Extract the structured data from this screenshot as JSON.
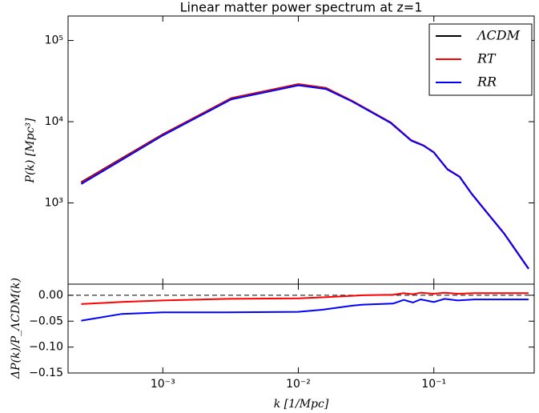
{
  "chart_data": [
    {
      "type": "line",
      "title": "Linear matter power spectrum at z=1",
      "y_label": "P(k)    [Mpc³]",
      "x_log": true,
      "y_log": true,
      "xlim": [
        0.0002,
        0.55
      ],
      "ylim": [
        100,
        200000
      ],
      "yticks": [
        {
          "value": 1000,
          "label": "10³"
        },
        {
          "value": 10000,
          "label": "10⁴"
        },
        {
          "value": 100000,
          "label": "10⁵"
        }
      ],
      "xticks": [
        0.001,
        0.01,
        0.1
      ],
      "legend": "upper right",
      "x": [
        0.00025,
        0.001,
        0.0032,
        0.01,
        0.016,
        0.025,
        0.037,
        0.048,
        0.068,
        0.084,
        0.1,
        0.126,
        0.155,
        0.19,
        0.25,
        0.33,
        0.5
      ],
      "series": [
        {
          "name": "ΛCDM",
          "color": "#000000",
          "values": [
            1800,
            7000,
            19500,
            29000,
            26000,
            18000,
            12500,
            9800,
            5900,
            5100,
            4200,
            2600,
            2100,
            1300,
            740,
            420,
            155
          ]
        },
        {
          "name": "RT",
          "color": "#ff0000",
          "values": [
            1770,
            6930,
            19380,
            28830,
            25900,
            18000,
            12510,
            9810,
            5920,
            5110,
            4210,
            2610,
            2110,
            1305,
            743,
            422,
            156
          ]
        },
        {
          "name": "RR",
          "color": "#0000ff",
          "values": [
            1710,
            6770,
            18850,
            28040,
            25270,
            17680,
            12300,
            9650,
            5840,
            5060,
            4170,
            2580,
            2090,
            1290,
            734,
            418,
            154
          ]
        }
      ]
    },
    {
      "type": "line",
      "x_label": "k    [1/Mpc]",
      "y_label": "ΔP(k)/P_ΛCDM(k)",
      "x_log": true,
      "y_log": false,
      "xlim": [
        0.0002,
        0.55
      ],
      "ylim": [
        -0.15,
        0.0215
      ],
      "xticks": [
        {
          "value": 0.001,
          "label": "10⁻³"
        },
        {
          "value": 0.01,
          "label": "10⁻²"
        },
        {
          "value": 0.1,
          "label": "10⁻¹"
        }
      ],
      "yticks": [
        {
          "value": -0.15,
          "label": "−0.15"
        },
        {
          "value": -0.1,
          "label": "−0.10"
        },
        {
          "value": -0.05,
          "label": "−0.05"
        },
        {
          "value": 0,
          "label": "0.00"
        }
      ],
      "zero_line": true,
      "x": [
        0.00025,
        0.0005,
        0.001,
        0.003,
        0.01,
        0.015,
        0.025,
        0.03,
        0.05,
        0.06,
        0.07,
        0.08,
        0.1,
        0.12,
        0.15,
        0.2,
        0.3,
        0.5
      ],
      "series": [
        {
          "color": "#ff0000",
          "values": [
            -0.017,
            -0.013,
            -0.01,
            -0.007,
            -0.006,
            -0.004,
            -0.001,
            0,
            0.001,
            0.004,
            0.002,
            0.005,
            0.003,
            0.005,
            0.003,
            0.004,
            0.004,
            0.004
          ]
        },
        {
          "color": "#0000ff",
          "values": [
            -0.049,
            -0.036,
            -0.033,
            -0.033,
            -0.032,
            -0.028,
            -0.02,
            -0.018,
            -0.016,
            -0.009,
            -0.014,
            -0.008,
            -0.013,
            -0.007,
            -0.01,
            -0.008,
            -0.008,
            -0.008
          ]
        }
      ]
    }
  ]
}
